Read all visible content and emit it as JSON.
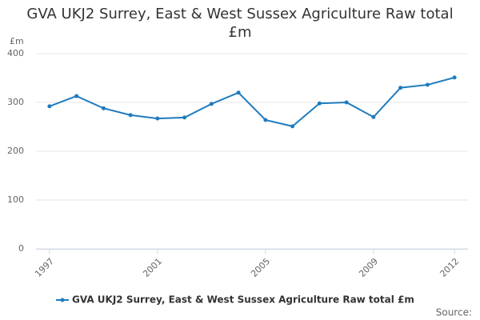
{
  "chart_data": {
    "type": "line",
    "title": "GVA UKJ2 Surrey, East & West Sussex Agriculture Raw total £m",
    "y_label": "£m",
    "source": "Source:",
    "x": [
      1997,
      1998,
      1999,
      2000,
      2001,
      2002,
      2003,
      2004,
      2005,
      2006,
      2007,
      2008,
      2009,
      2010,
      2011,
      2012
    ],
    "series": [
      {
        "name": "GVA UKJ2 Surrey, East & West Sussex Agriculture Raw total £m",
        "color": "#1f7bbf",
        "values": [
          292,
          313,
          288,
          274,
          267,
          269,
          297,
          320,
          264,
          251,
          298,
          300,
          270,
          330,
          336,
          351
        ]
      }
    ],
    "xlim": [
      1996.5,
      2012.5
    ],
    "xticks": [
      1997,
      2001,
      2005,
      2009,
      2012
    ],
    "ylim": [
      0,
      400
    ],
    "yticks": [
      0,
      100,
      200,
      300,
      400
    ],
    "grid": true
  }
}
